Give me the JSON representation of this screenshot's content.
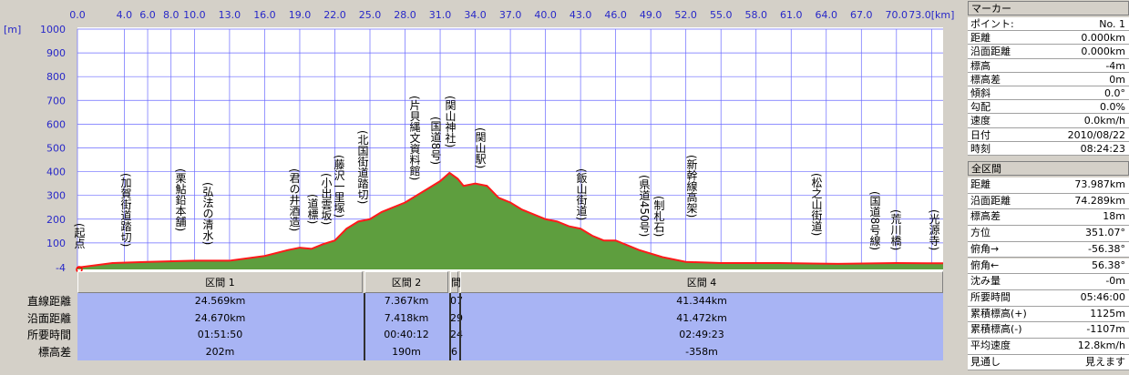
{
  "chart_data": {
    "type": "area",
    "y_unit": "[m]",
    "x": [
      0,
      3,
      6,
      10,
      13,
      16,
      18,
      19,
      20,
      21,
      22,
      23,
      24,
      25,
      26,
      28,
      30,
      31,
      31.8,
      32.5,
      33,
      34,
      35,
      36,
      37,
      38,
      39,
      40,
      41,
      42,
      43,
      44,
      45,
      46,
      47,
      48,
      50,
      52,
      55,
      60,
      65,
      70,
      73.987
    ],
    "values": [
      -4,
      15,
      20,
      25,
      25,
      45,
      70,
      80,
      75,
      95,
      110,
      160,
      190,
      200,
      230,
      270,
      330,
      360,
      395,
      370,
      340,
      350,
      340,
      290,
      270,
      240,
      220,
      200,
      190,
      170,
      160,
      130,
      110,
      110,
      90,
      70,
      40,
      20,
      15,
      15,
      12,
      15,
      14
    ],
    "color": "#5e9e3e",
    "line_color": "#ff1a1a",
    "grid": true,
    "xlim": [
      0,
      73.987
    ],
    "xticks": [
      {
        "value": 0,
        "label": "0.0"
      },
      {
        "value": 4,
        "label": "4.0"
      },
      {
        "value": 6,
        "label": "6.0"
      },
      {
        "value": 8,
        "label": "8.0"
      },
      {
        "value": 10,
        "label": "10.0"
      },
      {
        "value": 13,
        "label": "13.0"
      },
      {
        "value": 16,
        "label": "16.0"
      },
      {
        "value": 19,
        "label": "19.0"
      },
      {
        "value": 22,
        "label": "22.0"
      },
      {
        "value": 25,
        "label": "25.0"
      },
      {
        "value": 28,
        "label": "28.0"
      },
      {
        "value": 31,
        "label": "31.0"
      },
      {
        "value": 34,
        "label": "34.0"
      },
      {
        "value": 37,
        "label": "37.0"
      },
      {
        "value": 40,
        "label": "40.0"
      },
      {
        "value": 43,
        "label": "43.0"
      },
      {
        "value": 46,
        "label": "46.0"
      },
      {
        "value": 49,
        "label": "49.0"
      },
      {
        "value": 52,
        "label": "52.0"
      },
      {
        "value": 55,
        "label": "55.0"
      },
      {
        "value": 58,
        "label": "58.0"
      },
      {
        "value": 61,
        "label": "61.0"
      },
      {
        "value": 64,
        "label": "64.0"
      },
      {
        "value": 67,
        "label": "67.0"
      },
      {
        "value": 70,
        "label": "70.0"
      },
      {
        "value": 73,
        "label": "73.0[km]"
      }
    ],
    "ylim": [
      -4,
      1000
    ],
    "yticks": [
      -4,
      100,
      200,
      300,
      400,
      500,
      600,
      700,
      800,
      900,
      1000
    ],
    "annotations": [
      "(起点",
      "(加賀街道踏切)",
      "(栗鮎鉛本舗)",
      "(弘法の清水)",
      "(君の井酒造)",
      "(道標)",
      "(小出雲坂)",
      "(藤沢一里塚)",
      "(北国街道踏切)",
      "(片貝縄文資料館)",
      "(国道8号)",
      "(関山神社)",
      "(関山駅)",
      "(飯山街道)",
      "(県道450号)",
      "(制札石)",
      "(新幹線高架)",
      "(松之山街道)",
      "(国道8号線)",
      "(荒川橋)",
      "(光源寺)"
    ]
  },
  "sections": {
    "headers": [
      "区間 1",
      "区間 2",
      "間",
      "区間 4"
    ],
    "row_labels": [
      "直線距離",
      "沿面距離",
      "所要時間",
      "標高差"
    ],
    "rows": [
      [
        "24.569km",
        "7.367km",
        "07",
        "41.344km"
      ],
      [
        "24.670km",
        "7.418km",
        "29",
        "41.472km"
      ],
      [
        "01:51:50",
        "00:40:12",
        "24",
        "02:49:23"
      ],
      [
        "202m",
        "190m",
        "6",
        "-358m"
      ]
    ]
  },
  "marker": {
    "title": "マーカー",
    "rows": [
      [
        "ポイント:",
        "No. 1"
      ],
      [
        "距離",
        "0.000km"
      ],
      [
        "沿面距離",
        "0.000km"
      ],
      [
        "標高",
        "-4m"
      ],
      [
        "標高差",
        "0m"
      ],
      [
        "傾斜",
        "0.0°"
      ],
      [
        "勾配",
        "0.0%"
      ],
      [
        "速度",
        "0.0km/h"
      ],
      [
        "日付",
        "2010/08/22"
      ],
      [
        "時刻",
        "08:24:23"
      ]
    ]
  },
  "total": {
    "title": "全区間",
    "rows": [
      [
        "距離",
        "73.987km"
      ],
      [
        "沿面距離",
        "74.289km"
      ],
      [
        "標高差",
        "18m"
      ],
      [
        "方位",
        "351.07°"
      ],
      [
        "俯角→",
        "-56.38°"
      ],
      [
        "俯角←",
        "56.38°"
      ],
      [
        "沈み量",
        "-0m"
      ],
      [
        "所要時間",
        "05:46:00"
      ],
      [
        "累積標高(+)",
        "1125m"
      ],
      [
        "累積標高(-)",
        "-1107m"
      ],
      [
        "平均速度",
        "12.8km/h"
      ],
      [
        "見通し",
        "見えます"
      ]
    ]
  }
}
